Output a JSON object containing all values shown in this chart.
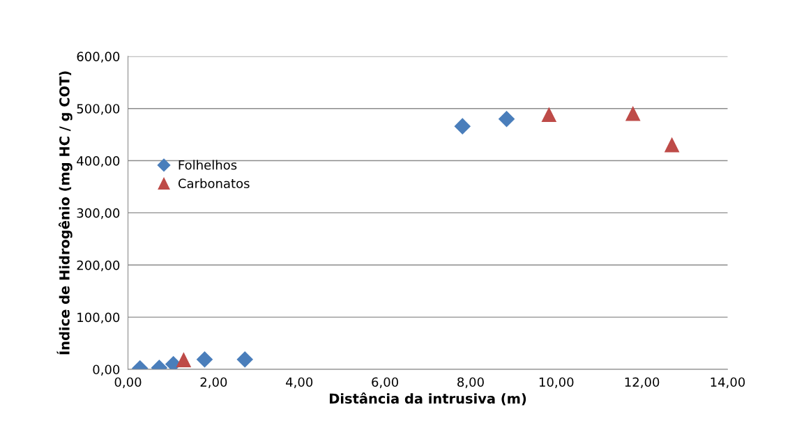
{
  "chart_data": {
    "type": "scatter",
    "xlabel": "Distância da intrusiva (m)",
    "ylabel": "Índice de Hidrogênio (mg HC / g COT)",
    "xlim": [
      0,
      14
    ],
    "ylim": [
      0,
      600
    ],
    "xticks": [
      {
        "value": 0,
        "label": "0,00"
      },
      {
        "value": 2,
        "label": "2,00"
      },
      {
        "value": 4,
        "label": "4,00"
      },
      {
        "value": 6,
        "label": "6,00"
      },
      {
        "value": 8,
        "label": "8,00"
      },
      {
        "value": 10,
        "label": "10,00"
      },
      {
        "value": 12,
        "label": "12,00"
      },
      {
        "value": 14,
        "label": "14,00"
      }
    ],
    "yticks": [
      {
        "value": 0,
        "label": "0,00"
      },
      {
        "value": 100,
        "label": "100,00"
      },
      {
        "value": 200,
        "label": "200,00"
      },
      {
        "value": 300,
        "label": "300,00"
      },
      {
        "value": 400,
        "label": "400,00"
      },
      {
        "value": 500,
        "label": "500,00"
      },
      {
        "value": 600,
        "label": "600,00"
      }
    ],
    "grid": "y",
    "legend": "left",
    "series": [
      {
        "name": "Folhelhos",
        "color": "#4a7ebb",
        "marker": "diamond",
        "x": [
          0.28,
          0.73,
          1.06,
          1.79,
          2.73,
          7.81,
          8.84
        ],
        "values": [
          2,
          3,
          10,
          19,
          19,
          466,
          480
        ]
      },
      {
        "name": "Carbonatos",
        "color": "#be4b48",
        "marker": "triangle",
        "x": [
          1.3,
          9.83,
          11.79,
          12.7
        ],
        "values": [
          18,
          488,
          490,
          430
        ]
      }
    ]
  }
}
